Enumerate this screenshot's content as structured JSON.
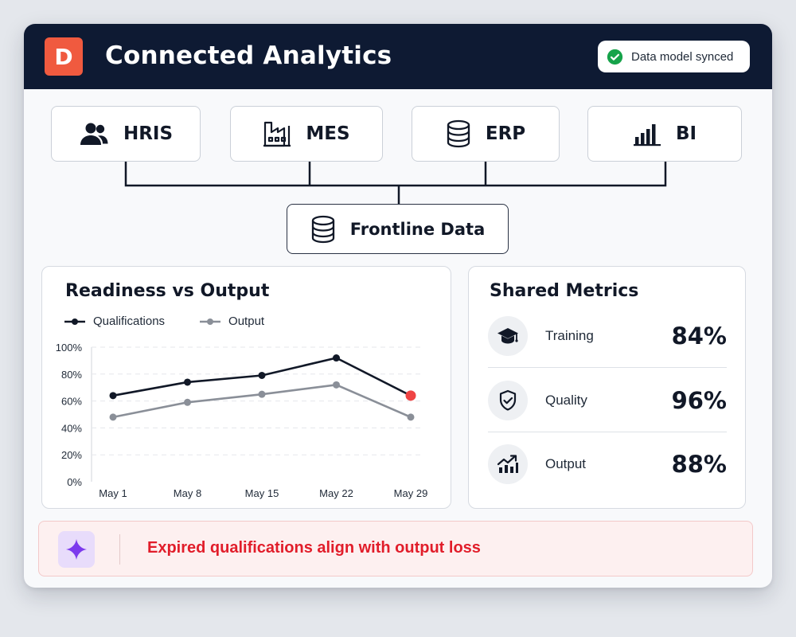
{
  "app": {
    "logo_letter": "D",
    "title": "Connected Analytics",
    "sync_status": "Data model synced"
  },
  "sources": [
    {
      "label": "HRIS",
      "icon": "people-icon"
    },
    {
      "label": "MES",
      "icon": "factory-icon"
    },
    {
      "label": "ERP",
      "icon": "database-icon"
    },
    {
      "label": "BI",
      "icon": "bar-chart-icon"
    }
  ],
  "hub": {
    "label": "Frontline Data",
    "icon": "database-icon"
  },
  "chart": {
    "title": "Readiness vs Output",
    "legend": [
      "Qualifications",
      "Output"
    ]
  },
  "chart_data": {
    "type": "line",
    "title": "Readiness vs Output",
    "categories": [
      "May 1",
      "May 8",
      "May 15",
      "May 22",
      "May 29"
    ],
    "series": [
      {
        "name": "Qualifications",
        "values": [
          64,
          74,
          79,
          92,
          64
        ],
        "color": "#111827"
      },
      {
        "name": "Output",
        "values": [
          48,
          59,
          65,
          72,
          48
        ],
        "color": "#8a8f98"
      }
    ],
    "highlight": {
      "series": 0,
      "index": 4,
      "color": "#ef4444"
    },
    "ylim": [
      0,
      100
    ],
    "yticks": [
      "0%",
      "20%",
      "40%",
      "60%",
      "80%",
      "100%"
    ],
    "grid": true,
    "legend_position": "top-left"
  },
  "metrics": {
    "title": "Shared Metrics",
    "items": [
      {
        "label": "Training",
        "value": "84%",
        "icon": "graduation-cap-icon"
      },
      {
        "label": "Quality",
        "value": "96%",
        "icon": "shield-check-icon"
      },
      {
        "label": "Output",
        "value": "88%",
        "icon": "trend-up-icon"
      }
    ]
  },
  "insight": {
    "text": "Expired qualifications align with output loss",
    "icon": "sparkle-icon"
  },
  "colors": {
    "header_bg": "#0e1a33",
    "brand": "#f05a3f",
    "success": "#16a34a",
    "alert_text": "#e11d2a",
    "alert_bg": "#fdf0f0",
    "accent_purple": "#7c3aed"
  }
}
